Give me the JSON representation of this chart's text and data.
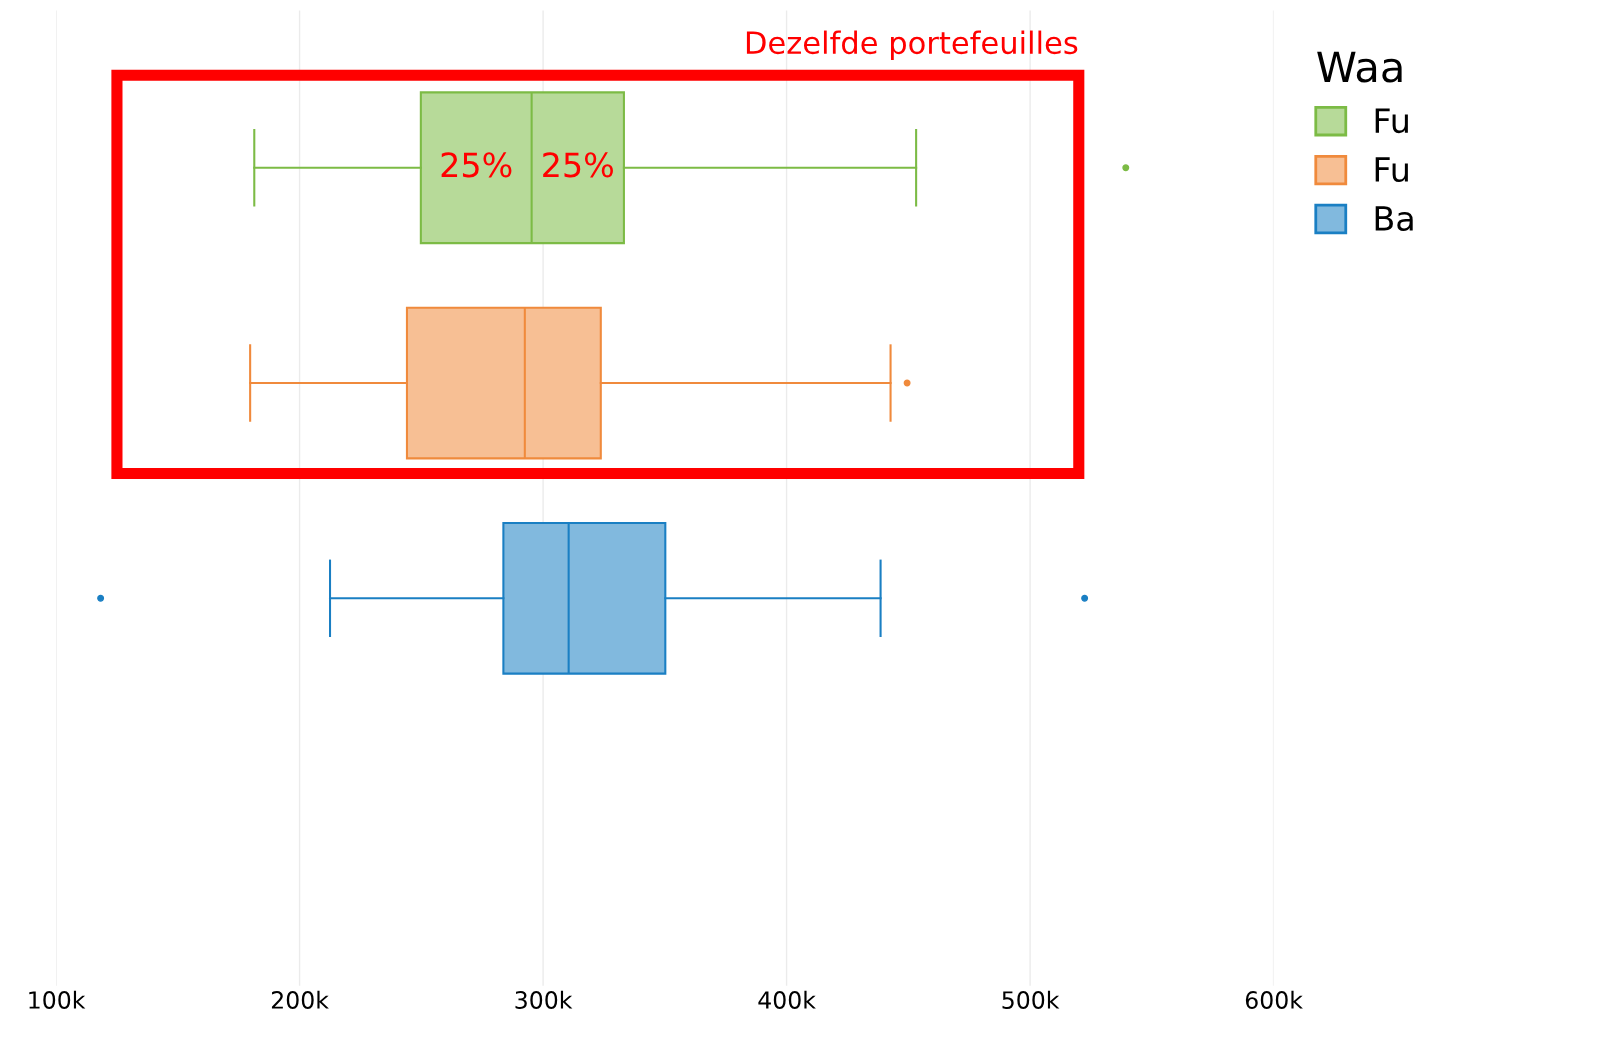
{
  "chart_data": {
    "type": "box",
    "categories": [
      null
    ],
    "orientation": "horizontal",
    "series": [
      {
        "name": "Fu",
        "color": "#7cbb45",
        "boxes": [
          {
            "low": 181400,
            "q1": 249800,
            "median": 295300,
            "q3": 333200,
            "high": 453200,
            "outliers": [
              539300
            ]
          }
        ]
      },
      {
        "name": "Fu",
        "color": "#f08a3c",
        "boxes": [
          {
            "low": 179700,
            "q1": 244100,
            "median": 292500,
            "q3": 323700,
            "high": 442700,
            "outliers": [
              449500
            ]
          }
        ]
      },
      {
        "name": "Ba",
        "color": "#1a7fc3",
        "boxes": [
          {
            "low": 212500,
            "q1": 283700,
            "median": 310500,
            "q3": 350200,
            "high": 438600,
            "outliers": [
              118300,
              522400
            ]
          }
        ]
      }
    ],
    "legend_title": "Waa",
    "legend": "right",
    "grid": "x",
    "tick_labels": "x",
    "xlim": [
      100000,
      600000
    ],
    "xticks": [
      {
        "value": 100000,
        "label": "100k"
      },
      {
        "value": 200000,
        "label": "200k"
      },
      {
        "value": 300000,
        "label": "300k"
      },
      {
        "value": 400000,
        "label": "400k"
      },
      {
        "value": 500000,
        "label": "500k"
      },
      {
        "value": 600000,
        "label": "600k"
      }
    ],
    "annotations": [
      "Dezelfde portefeuilles",
      "25%",
      "25%"
    ]
  }
}
